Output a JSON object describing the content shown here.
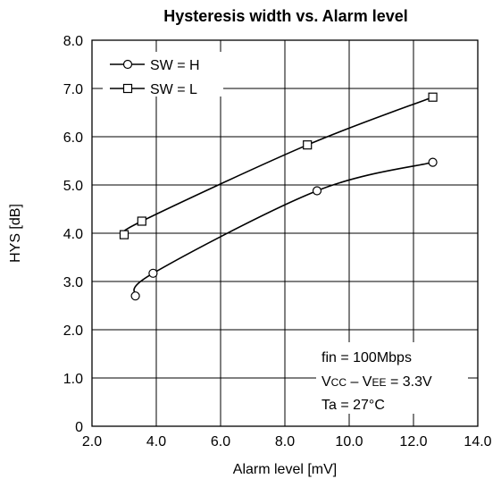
{
  "chart_data": {
    "type": "line",
    "title": "Hysteresis width vs. Alarm level",
    "xlabel": "Alarm level [mV]",
    "ylabel": "HYS [dB]",
    "xlim": [
      2.0,
      14.0
    ],
    "ylim": [
      0,
      8.0
    ],
    "xticks": [
      "2.0",
      "4.0",
      "6.0",
      "8.0",
      "10.0",
      "12.0",
      "14.0"
    ],
    "yticks": [
      "0",
      "1.0",
      "2.0",
      "3.0",
      "4.0",
      "5.0",
      "6.0",
      "7.0",
      "8.0"
    ],
    "grid": true,
    "legend_position": "top-left",
    "series": [
      {
        "name": "SW = H",
        "marker": "circle",
        "x": [
          3.35,
          3.9,
          9.0,
          12.6
        ],
        "y": [
          2.7,
          3.17,
          4.88,
          5.47
        ]
      },
      {
        "name": "SW = L",
        "marker": "square",
        "x": [
          3.0,
          3.55,
          8.7,
          12.6
        ],
        "y": [
          3.97,
          4.25,
          5.83,
          6.82
        ]
      }
    ],
    "annotations": {
      "line1": "fin = 100Mbps",
      "line2_a": "V",
      "line2_b": "CC",
      "line2_c": " – V",
      "line2_d": "EE",
      "line2_e": " = 3.3V",
      "line3": "Ta = 27°C"
    }
  }
}
